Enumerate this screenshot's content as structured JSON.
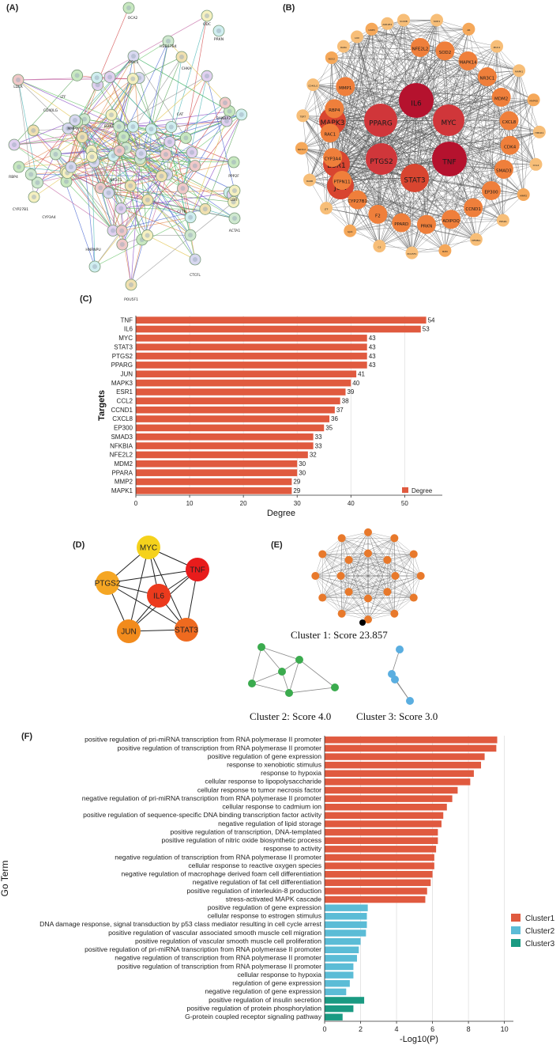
{
  "panels": {
    "a": "(A)",
    "b": "(B)",
    "c": "(C)",
    "d": "(D)",
    "e": "(E)",
    "f": "(F)"
  },
  "panel_a": {
    "type": "network",
    "visible_labels": [
      "OCA2",
      "ODC",
      "ODC1",
      "HSD17B4",
      "CHKA",
      "LDLR",
      "LTF",
      "CD40LG",
      "MMP1",
      "BDNF",
      "CAT",
      "PRKN",
      "RANBP2",
      "PPP2F",
      "RBP4",
      "CYP27B1",
      "CYP3A4",
      "HNRNPU",
      "LBR",
      "ACTA1",
      "CTCFL",
      "POU5F1",
      "CFTR",
      "NR3C1"
    ]
  },
  "panel_b": {
    "type": "network",
    "center_nodes": [
      "IL6",
      "PPARG",
      "MYC",
      "PTGS2",
      "TNF",
      "ESR1",
      "STAT3",
      "JUN",
      "MAPK3"
    ],
    "ring_nodes": [
      "NFE2L2",
      "SOD1",
      "SOD2",
      "AR",
      "MAPK14",
      "MUC1",
      "NR3C1",
      "MAPK1",
      "MDM2",
      "MAPK8",
      "CXCL8",
      "HMOX1",
      "CDK4",
      "CCL2",
      "SMAD3",
      "MMP2",
      "EP300",
      "PPARA",
      "CCND1",
      "NFKBIA",
      "ADIPOQ",
      "B2M",
      "PRKN",
      "POU5F1",
      "PPARD",
      "C3",
      "F2",
      "GJA1",
      "CYP27B1",
      "LTF",
      "PTPN11",
      "RARB",
      "CYP3A4",
      "NR3C2",
      "RAC1",
      "TERT",
      "RBP4",
      "CD40LG",
      "MMP1",
      "NOS2",
      "RARA",
      "LOX",
      "G6PD",
      "AKR1B1",
      "S100B"
    ]
  },
  "chart_c": {
    "type": "bar",
    "orientation": "horizontal",
    "categories": [
      "TNF",
      "IL6",
      "MYC",
      "STAT3",
      "PTGS2",
      "PPARG",
      "JUN",
      "MAPK3",
      "ESR1",
      "CCL2",
      "CCND1",
      "CXCL8",
      "EP300",
      "SMAD3",
      "NFKBIA",
      "NFE2L2",
      "MDM2",
      "PPARA",
      "MMP2",
      "MAPK1"
    ],
    "values": [
      54,
      53,
      43,
      43,
      43,
      43,
      41,
      40,
      39,
      38,
      37,
      36,
      35,
      33,
      33,
      32,
      30,
      30,
      29,
      29
    ],
    "xlabel": "Degree",
    "ylabel": "Targets",
    "xlim": [
      0,
      57
    ],
    "xticks": [
      "0",
      "10",
      "20",
      "30",
      "40",
      "50"
    ],
    "legend": "Degree",
    "legend_position": "bottom-right",
    "color": "#e05a3f",
    "grid": "vertical"
  },
  "panel_d": {
    "type": "network",
    "nodes": [
      {
        "name": "MYC",
        "color": "#f5d21c"
      },
      {
        "name": "TNF",
        "color": "#e81c1c"
      },
      {
        "name": "PTGS2",
        "color": "#f5a623"
      },
      {
        "name": "IL6",
        "color": "#ec3a1d"
      },
      {
        "name": "JUN",
        "color": "#f28b1c"
      },
      {
        "name": "STAT3",
        "color": "#ef6a1f"
      }
    ]
  },
  "panel_e": {
    "clusters": [
      {
        "caption": "Cluster 1: Score 23.857",
        "color": "#e8792b",
        "nodes": 20
      },
      {
        "caption": "Cluster 2: Score 4.0",
        "color": "#3bab4e",
        "nodes": 6
      },
      {
        "caption": "Cluster 3: Score 3.0",
        "color": "#5aaee0",
        "nodes": 4
      }
    ]
  },
  "chart_data": [
    {
      "type": "bar",
      "orientation": "horizontal",
      "categories": [
        "TNF",
        "IL6",
        "MYC",
        "STAT3",
        "PTGS2",
        "PPARG",
        "JUN",
        "MAPK3",
        "ESR1",
        "CCL2",
        "CCND1",
        "CXCL8",
        "EP300",
        "SMAD3",
        "NFKBIA",
        "NFE2L2",
        "MDM2",
        "PPARA",
        "MMP2",
        "MAPK1"
      ],
      "values": [
        54,
        53,
        43,
        43,
        43,
        43,
        41,
        40,
        39,
        38,
        37,
        36,
        35,
        33,
        33,
        32,
        30,
        30,
        29,
        29
      ],
      "xlabel": "Degree",
      "ylabel": "Targets"
    },
    {
      "type": "bar",
      "orientation": "horizontal",
      "xlabel": "-Log10(P)",
      "ylabel": "Go Term",
      "xlim": [
        0,
        10.5
      ],
      "xticks": [
        "0",
        "2",
        "4",
        "6",
        "8",
        "10"
      ],
      "legend_position": "right",
      "grid": "vertical",
      "series": [
        {
          "name": "Cluster1",
          "color": "#e05a3f"
        },
        {
          "name": "Cluster2",
          "color": "#5bbcd6"
        },
        {
          "name": "Cluster3",
          "color": "#1a9a82"
        }
      ]
    }
  ],
  "chart_f": {
    "xlabel": "-Log10(P)",
    "ylabel": "Go Term",
    "xlim": [
      0,
      10.5
    ],
    "xticks": [
      "0",
      "2",
      "4",
      "6",
      "8",
      "10"
    ],
    "legend_position": "right",
    "series": [
      {
        "name": "Cluster1",
        "color": "#e05a3f"
      },
      {
        "name": "Cluster2",
        "color": "#5bbcd6"
      },
      {
        "name": "Cluster3",
        "color": "#1a9a82"
      }
    ],
    "terms": [
      {
        "label": "positive regulation of pri-miRNA transcription from RNA polymerase II promoter",
        "value": 9.6,
        "cluster": 0
      },
      {
        "label": "positive regulation of transcription from RNA polymerase II promoter",
        "value": 9.55,
        "cluster": 0
      },
      {
        "label": "positive regulation of gene expression",
        "value": 8.9,
        "cluster": 0
      },
      {
        "label": "response to xenobiotic stimulus",
        "value": 8.7,
        "cluster": 0
      },
      {
        "label": "response to hypoxia",
        "value": 8.3,
        "cluster": 0
      },
      {
        "label": "cellular response to lipopolysaccharide",
        "value": 8.1,
        "cluster": 0
      },
      {
        "label": "cellular response to tumor necrosis factor",
        "value": 7.4,
        "cluster": 0
      },
      {
        "label": "negative regulation of pri-miRNA transcription from RNA polymerase II promoter",
        "value": 7.1,
        "cluster": 0
      },
      {
        "label": "cellular response to cadmium ion",
        "value": 6.8,
        "cluster": 0
      },
      {
        "label": "positive regulation of sequence-specific DNA binding transcription factor activity",
        "value": 6.6,
        "cluster": 0
      },
      {
        "label": "negative regulation of lipid storage",
        "value": 6.5,
        "cluster": 0
      },
      {
        "label": "positive regulation of transcription, DNA-templated",
        "value": 6.3,
        "cluster": 0
      },
      {
        "label": "positive regulation of nitric oxide biosynthetic process",
        "value": 6.3,
        "cluster": 0
      },
      {
        "label": "response to activity",
        "value": 6.2,
        "cluster": 0
      },
      {
        "label": "negative regulation of transcription from RNA polymerase II promoter",
        "value": 6.1,
        "cluster": 0
      },
      {
        "label": "cellular response to reactive oxygen species",
        "value": 6.1,
        "cluster": 0
      },
      {
        "label": "negative regulation of macrophage derived foam cell differentiation",
        "value": 6.0,
        "cluster": 0
      },
      {
        "label": "negative regulation of fat cell differentiation",
        "value": 5.9,
        "cluster": 0
      },
      {
        "label": "positive regulation of interleukin-8 production",
        "value": 5.7,
        "cluster": 0
      },
      {
        "label": "stress-activated MAPK cascade",
        "value": 5.6,
        "cluster": 0
      },
      {
        "label": "positive regulation of gene expression",
        "value": 2.4,
        "cluster": 1
      },
      {
        "label": "cellular response to estrogen stimulus",
        "value": 2.35,
        "cluster": 1
      },
      {
        "label": "DNA damage response, signal transduction by p53 class mediator resulting in cell cycle arrest",
        "value": 2.35,
        "cluster": 1
      },
      {
        "label": "positive regulation of vascular associated smooth muscle cell migration",
        "value": 2.3,
        "cluster": 1
      },
      {
        "label": "positive regulation of vascular smooth muscle cell proliferation",
        "value": 2.0,
        "cluster": 1
      },
      {
        "label": "positive regulation of pri-miRNA transcription from RNA polymerase II promoter",
        "value": 1.9,
        "cluster": 1
      },
      {
        "label": "negative regulation of transcription from RNA polymerase II promoter",
        "value": 1.8,
        "cluster": 1
      },
      {
        "label": "positive regulation of transcription from RNA polymerase II promoter",
        "value": 1.6,
        "cluster": 1
      },
      {
        "label": "cellular response to hypoxia",
        "value": 1.6,
        "cluster": 1
      },
      {
        "label": "regulation of gene expression",
        "value": 1.4,
        "cluster": 1
      },
      {
        "label": "negative regulation of gene expression",
        "value": 1.2,
        "cluster": 1
      },
      {
        "label": "positive regulation of insulin secretion",
        "value": 2.2,
        "cluster": 2
      },
      {
        "label": "positive regulation of protein phosphorylation",
        "value": 1.6,
        "cluster": 2
      },
      {
        "label": "G-protein coupled receptor signaling pathway",
        "value": 1.0,
        "cluster": 2
      }
    ]
  }
}
